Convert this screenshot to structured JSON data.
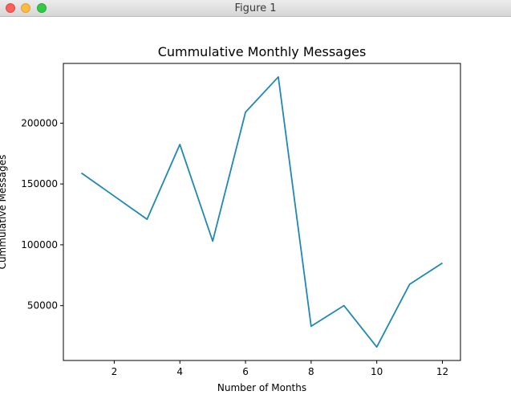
{
  "window": {
    "title": "Figure 1"
  },
  "chart_data": {
    "type": "line",
    "title": "Cummulative Monthly Messages",
    "xlabel": "Number of Months",
    "ylabel": "Cummulative Messages",
    "x": [
      1,
      2,
      3,
      4,
      5,
      6,
      7,
      8,
      9,
      10,
      11,
      12
    ],
    "series": [
      {
        "values": [
          159000,
          140000,
          121000,
          182500,
          103000,
          209000,
          238000,
          33000,
          50000,
          16000,
          67500,
          85000
        ],
        "color": "#1f88b4"
      }
    ],
    "xticks": [
      2,
      4,
      6,
      8,
      10,
      12
    ],
    "yticks": [
      50000,
      100000,
      150000,
      200000
    ],
    "xlim": [
      0.45,
      12.55
    ],
    "ylim": [
      4900,
      249100
    ],
    "grid": false
  }
}
